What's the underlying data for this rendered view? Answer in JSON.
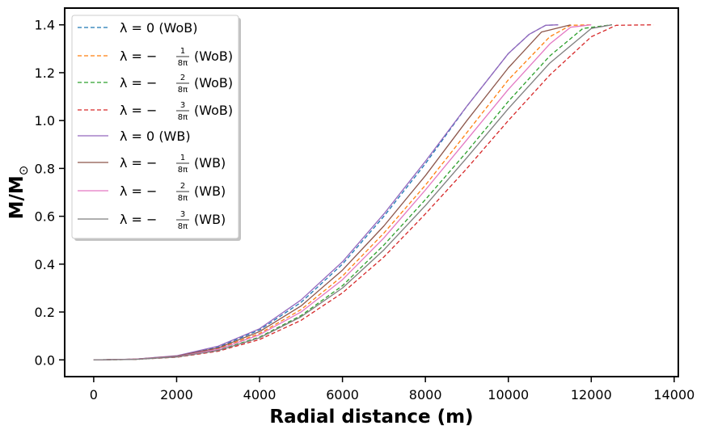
{
  "chart_data": {
    "type": "line",
    "title": "",
    "xlabel": "Radial distance (m)",
    "ylabel": "M/M⊙",
    "ylabel_main": "M/M",
    "ylabel_sub": "⊙",
    "xlim": [
      -700,
      14100
    ],
    "ylim": [
      -0.07,
      1.47
    ],
    "xticks": [
      0,
      2000,
      4000,
      6000,
      8000,
      10000,
      12000,
      14000
    ],
    "yticks": [
      0.0,
      0.2,
      0.4,
      0.6,
      0.8,
      1.0,
      1.2,
      1.4
    ],
    "xtick_labels": [
      "0",
      "2000",
      "4000",
      "6000",
      "8000",
      "10000",
      "12000",
      "14000"
    ],
    "ytick_labels": [
      "0.0",
      "0.2",
      "0.4",
      "0.6",
      "0.8",
      "1.0",
      "1.2",
      "1.4"
    ],
    "grid": false,
    "legend_position": "top-left",
    "series": [
      {
        "name": "λ = 0 (WoB)",
        "lam_prefix": "λ = 0",
        "lam_num": "",
        "lam_den": "",
        "suffix": "(WoB)",
        "color": "#1f77b4",
        "dashed": true,
        "x": [
          0,
          1000,
          2000,
          3000,
          4000,
          5000,
          6000,
          7000,
          8000,
          9000,
          10000,
          10500,
          10900,
          11200
        ],
        "y": [
          0,
          0.003,
          0.016,
          0.054,
          0.125,
          0.24,
          0.4,
          0.6,
          0.82,
          1.06,
          1.28,
          1.36,
          1.398,
          1.4
        ]
      },
      {
        "name": "λ = −1/8π (WoB)",
        "lam_prefix": "λ = −",
        "lam_num": "1",
        "lam_den": "8π",
        "suffix": "(WoB)",
        "color": "#ff7f0e",
        "dashed": true,
        "x": [
          0,
          1000,
          2000,
          3000,
          4000,
          5000,
          6000,
          7000,
          8000,
          9000,
          10000,
          11000,
          11500,
          12000
        ],
        "y": [
          0,
          0.003,
          0.014,
          0.047,
          0.11,
          0.21,
          0.35,
          0.53,
          0.73,
          0.95,
          1.17,
          1.35,
          1.398,
          1.4
        ]
      },
      {
        "name": "λ = −2/8π (WoB)",
        "lam_prefix": "λ = −",
        "lam_num": "2",
        "lam_den": "8π",
        "suffix": "(WoB)",
        "color": "#2ca02c",
        "dashed": true,
        "x": [
          0,
          1000,
          2000,
          3000,
          4000,
          5000,
          6000,
          7000,
          8000,
          9000,
          10000,
          11000,
          11800,
          12500
        ],
        "y": [
          0,
          0.002,
          0.012,
          0.04,
          0.095,
          0.185,
          0.31,
          0.48,
          0.67,
          0.87,
          1.08,
          1.27,
          1.385,
          1.4
        ]
      },
      {
        "name": "λ = −3/8π (WoB)",
        "lam_prefix": "λ = −",
        "lam_num": "3",
        "lam_den": "8π",
        "suffix": "(WoB)",
        "color": "#d62728",
        "dashed": true,
        "x": [
          0,
          1000,
          2000,
          3000,
          4000,
          5000,
          6000,
          7000,
          8000,
          9000,
          10000,
          11000,
          12000,
          12600,
          13500
        ],
        "y": [
          0,
          0.002,
          0.011,
          0.036,
          0.085,
          0.165,
          0.28,
          0.43,
          0.61,
          0.8,
          1.0,
          1.19,
          1.35,
          1.398,
          1.4
        ]
      },
      {
        "name": "λ = 0 (WB)",
        "lam_prefix": "λ = 0",
        "lam_num": "",
        "lam_den": "",
        "suffix": "(WB)",
        "color": "#9467bd",
        "dashed": false,
        "x": [
          0,
          1000,
          2000,
          3000,
          4000,
          5000,
          6000,
          7000,
          8000,
          9000,
          10000,
          10500,
          10900,
          11200
        ],
        "y": [
          0,
          0.003,
          0.017,
          0.057,
          0.13,
          0.25,
          0.41,
          0.61,
          0.83,
          1.06,
          1.28,
          1.36,
          1.398,
          1.4
        ]
      },
      {
        "name": "λ = −1/8π (WB)",
        "lam_prefix": "λ = −",
        "lam_num": "1",
        "lam_den": "8π",
        "suffix": "(WB)",
        "color": "#8c564b",
        "dashed": false,
        "x": [
          0,
          1000,
          2000,
          3000,
          4000,
          5000,
          6000,
          7000,
          8000,
          9000,
          10000,
          10800,
          11500
        ],
        "y": [
          0,
          0.003,
          0.015,
          0.05,
          0.118,
          0.225,
          0.375,
          0.56,
          0.77,
          1.0,
          1.22,
          1.37,
          1.4
        ]
      },
      {
        "name": "λ = −2/8π (WB)",
        "lam_prefix": "λ = −",
        "lam_num": "2",
        "lam_den": "8π",
        "suffix": "(WB)",
        "color": "#e377c2",
        "dashed": false,
        "x": [
          0,
          1000,
          2000,
          3000,
          4000,
          5000,
          6000,
          7000,
          8000,
          9000,
          10000,
          11000,
          11500,
          12000
        ],
        "y": [
          0,
          0.003,
          0.013,
          0.044,
          0.105,
          0.2,
          0.335,
          0.51,
          0.71,
          0.92,
          1.13,
          1.32,
          1.39,
          1.4
        ]
      },
      {
        "name": "λ = −3/8π (WB)",
        "lam_prefix": "λ = −",
        "lam_num": "3",
        "lam_den": "8π",
        "suffix": "(WB)",
        "color": "#7f7f7f",
        "dashed": false,
        "x": [
          0,
          1000,
          2000,
          3000,
          4000,
          5000,
          6000,
          7000,
          8000,
          9000,
          10000,
          11000,
          12000,
          12500
        ],
        "y": [
          0,
          0.002,
          0.012,
          0.039,
          0.092,
          0.18,
          0.3,
          0.46,
          0.645,
          0.845,
          1.05,
          1.24,
          1.385,
          1.4
        ]
      }
    ]
  }
}
